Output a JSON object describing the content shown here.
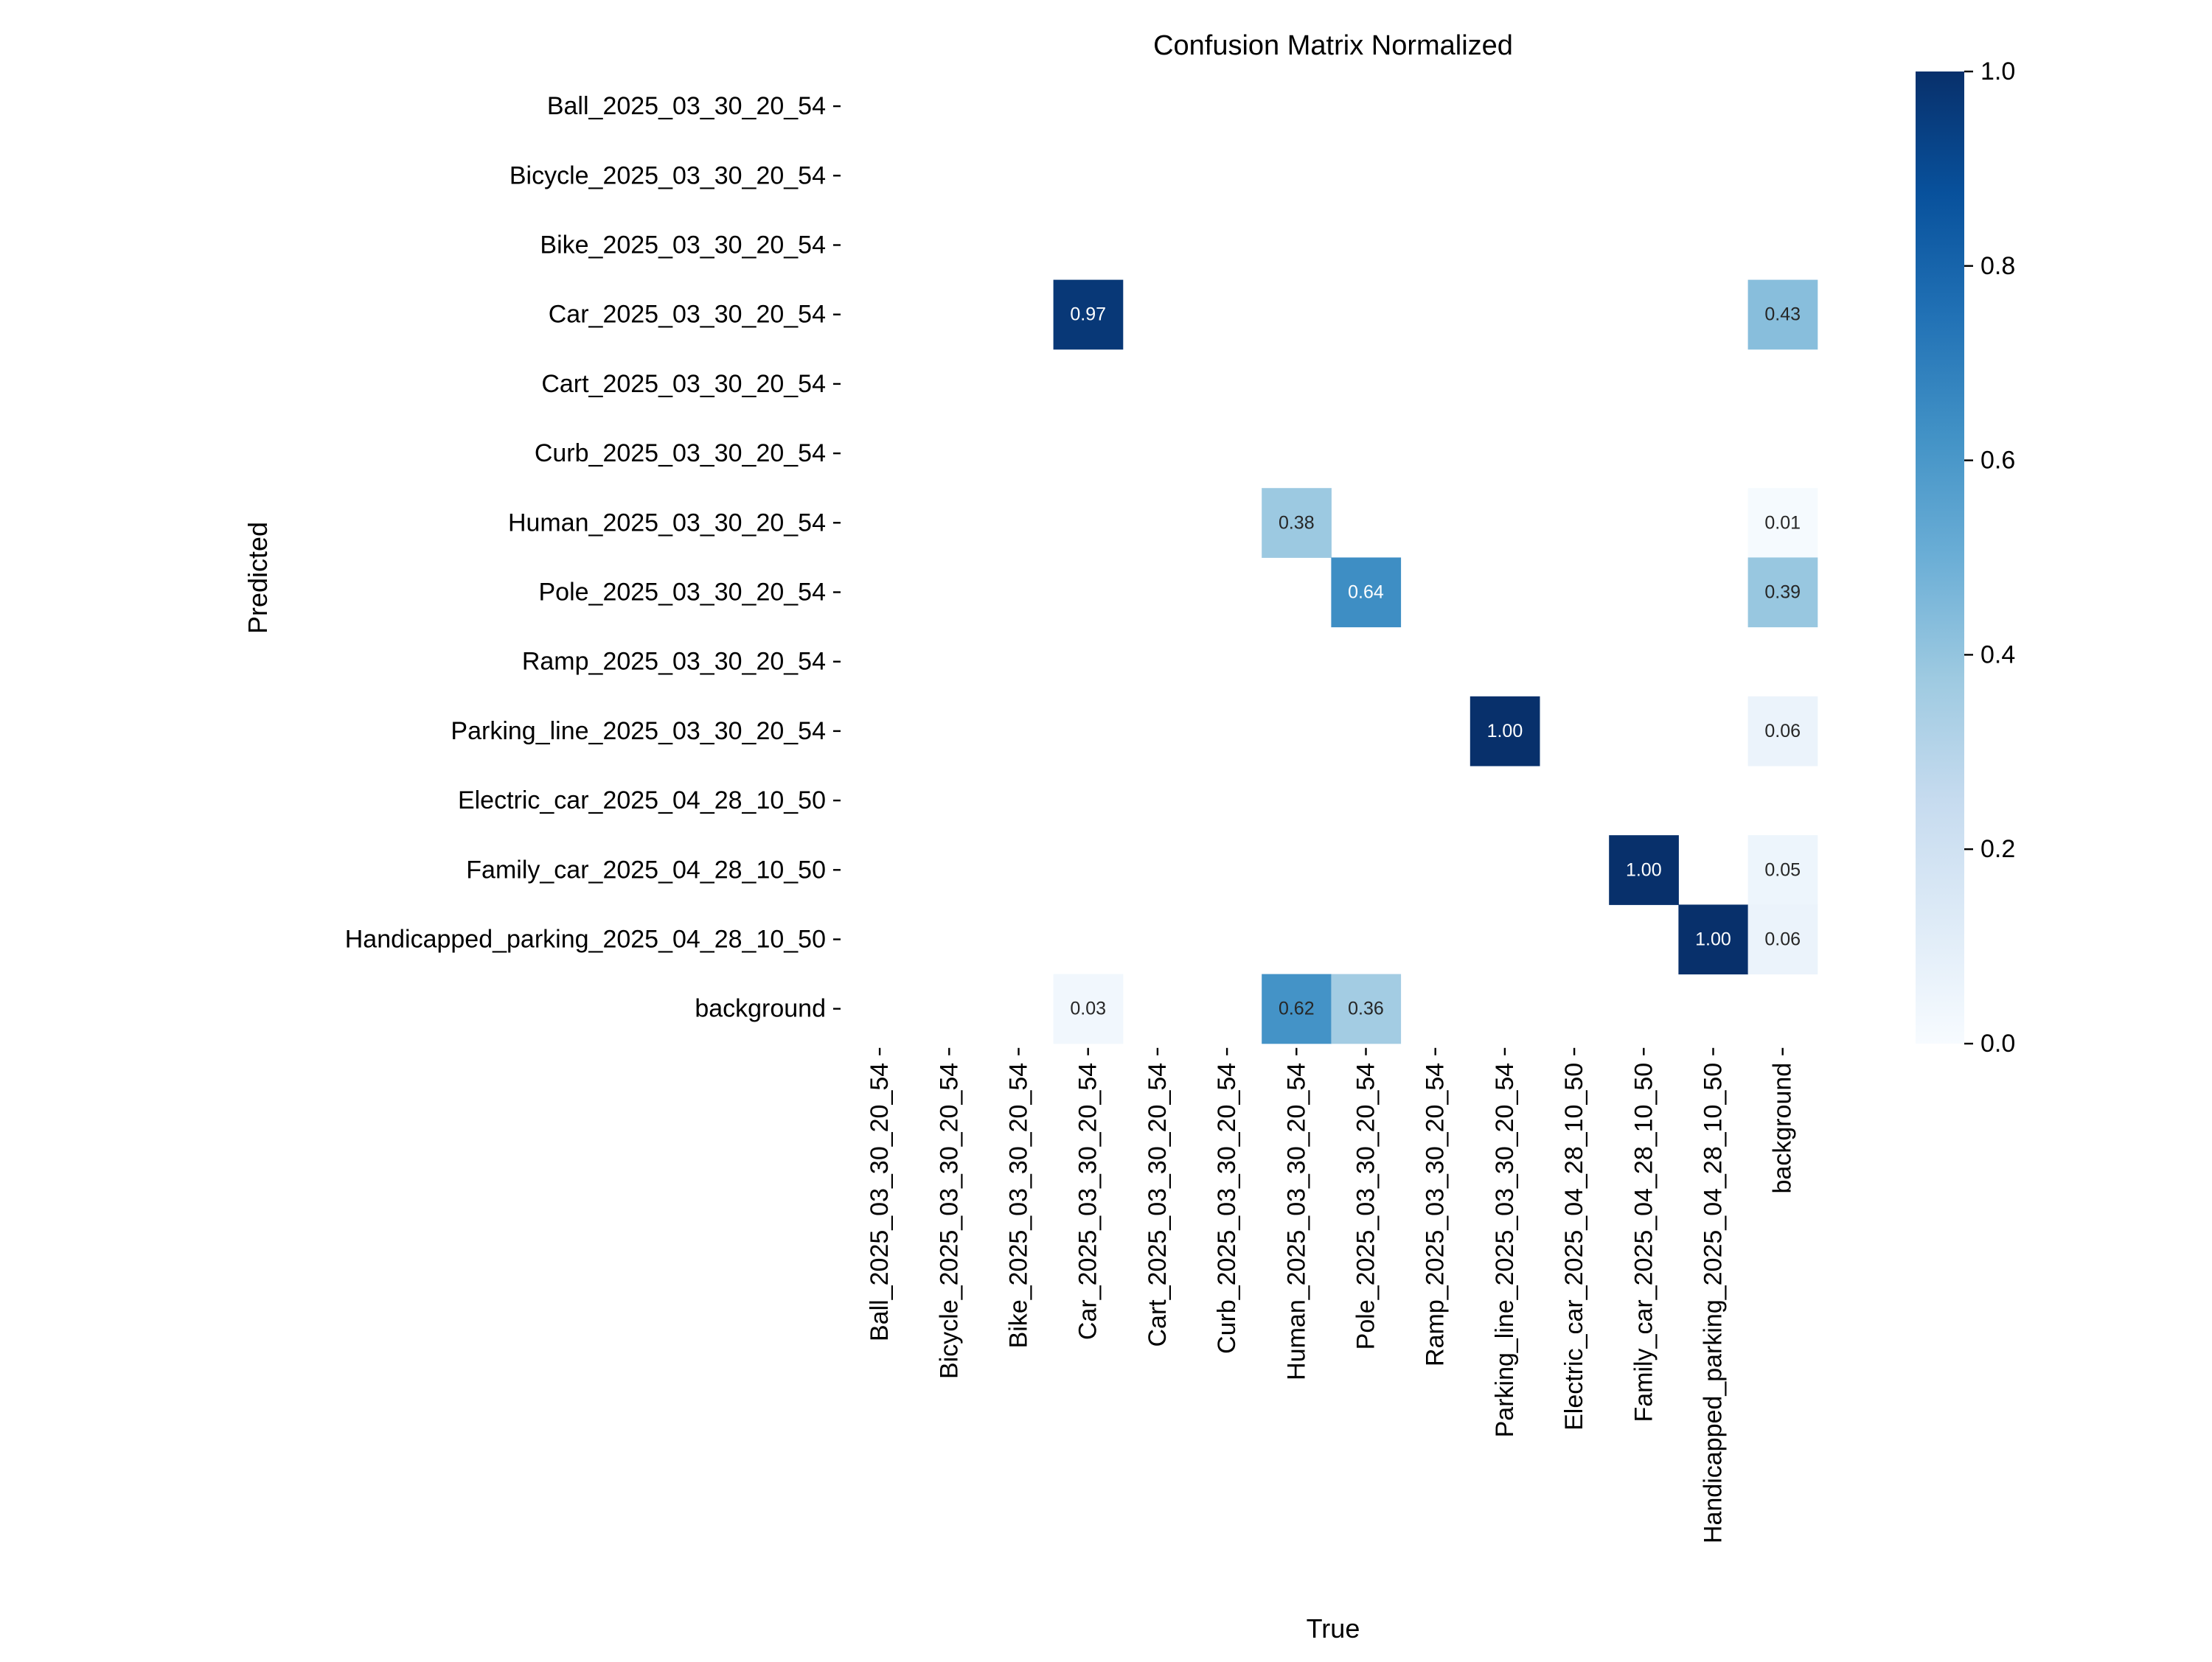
{
  "chart_data": {
    "type": "heatmap",
    "title": "Confusion Matrix Normalized",
    "xlabel": "True",
    "ylabel": "Predicted",
    "categories": [
      "Ball_2025_03_30_20_54",
      "Bicycle_2025_03_30_20_54",
      "Bike_2025_03_30_20_54",
      "Car_2025_03_30_20_54",
      "Cart_2025_03_30_20_54",
      "Curb_2025_03_30_20_54",
      "Human_2025_03_30_20_54",
      "Pole_2025_03_30_20_54",
      "Ramp_2025_03_30_20_54",
      "Parking_line_2025_03_30_20_54",
      "Electric_car_2025_04_28_10_50",
      "Family_car_2025_04_28_10_50",
      "Handicapped_parking_2025_04_28_10_50",
      "background"
    ],
    "cells": [
      {
        "pred": 3,
        "true": 3,
        "value": 0.97,
        "label": "0.97"
      },
      {
        "pred": 3,
        "true": 13,
        "value": 0.43,
        "label": "0.43"
      },
      {
        "pred": 6,
        "true": 6,
        "value": 0.38,
        "label": "0.38"
      },
      {
        "pred": 6,
        "true": 13,
        "value": 0.01,
        "label": "0.01"
      },
      {
        "pred": 7,
        "true": 7,
        "value": 0.64,
        "label": "0.64"
      },
      {
        "pred": 7,
        "true": 13,
        "value": 0.39,
        "label": "0.39"
      },
      {
        "pred": 9,
        "true": 9,
        "value": 1.0,
        "label": "1.00"
      },
      {
        "pred": 9,
        "true": 13,
        "value": 0.06,
        "label": "0.06"
      },
      {
        "pred": 11,
        "true": 11,
        "value": 1.0,
        "label": "1.00"
      },
      {
        "pred": 11,
        "true": 13,
        "value": 0.05,
        "label": "0.05"
      },
      {
        "pred": 12,
        "true": 12,
        "value": 1.0,
        "label": "1.00"
      },
      {
        "pred": 12,
        "true": 13,
        "value": 0.06,
        "label": "0.06"
      },
      {
        "pred": 13,
        "true": 3,
        "value": 0.03,
        "label": "0.03"
      },
      {
        "pred": 13,
        "true": 6,
        "value": 0.62,
        "label": "0.62"
      },
      {
        "pred": 13,
        "true": 7,
        "value": 0.36,
        "label": "0.36"
      }
    ],
    "colorbar": {
      "range": [
        0,
        1.0
      ],
      "ticks": [
        "0.0",
        "0.2",
        "0.4",
        "0.6",
        "0.8",
        "1.0"
      ],
      "colormap": "Blues",
      "stops": [
        "#f7fbff",
        "#deebf7",
        "#c6dbef",
        "#9ecae1",
        "#6baed6",
        "#4292c6",
        "#2171b5",
        "#08519c",
        "#08306b"
      ]
    },
    "grid": false
  }
}
